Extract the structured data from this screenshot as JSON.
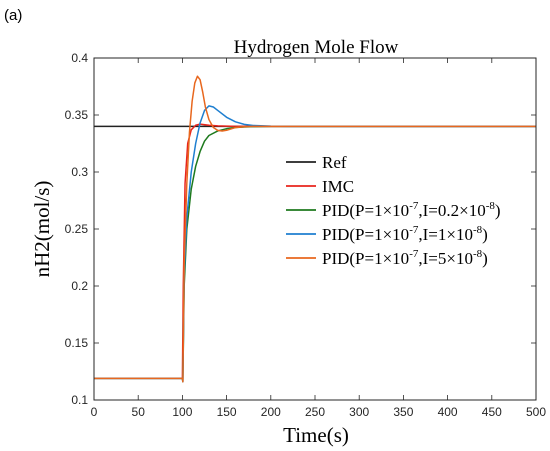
{
  "panel_label": "(a)",
  "chart_data": {
    "type": "line",
    "title": "Hydrogen Mole Flow",
    "xlabel": "Time(s)",
    "ylabel": "nH2(mol/s)",
    "xlim": [
      0,
      500
    ],
    "ylim": [
      0.1,
      0.4
    ],
    "xticks": [
      0,
      50,
      100,
      150,
      200,
      250,
      300,
      350,
      400,
      450,
      500
    ],
    "yticks": [
      0.1,
      0.15,
      0.2,
      0.25,
      0.3,
      0.35,
      0.4
    ],
    "grid": false,
    "legend_position": "center-right",
    "series": [
      {
        "name": "Ref",
        "label_parts": [
          {
            "t": "Ref"
          }
        ],
        "color": "#222222",
        "x": [
          0,
          100,
          100,
          500
        ],
        "y": [
          0.34,
          0.34,
          0.34,
          0.34
        ]
      },
      {
        "name": "IMC",
        "label_parts": [
          {
            "t": "IMC"
          }
        ],
        "color": "#e8251d",
        "x": [
          0,
          100,
          101,
          103,
          106,
          110,
          115,
          120,
          130,
          140,
          150,
          160,
          180,
          200,
          500
        ],
        "y": [
          0.119,
          0.119,
          0.2,
          0.29,
          0.325,
          0.337,
          0.341,
          0.342,
          0.341,
          0.3405,
          0.3402,
          0.34,
          0.34,
          0.34,
          0.34
        ]
      },
      {
        "name": "PID(P=1×10^-7,I=0.2×10^-8)",
        "label_parts": [
          {
            "t": "PID(P=1×10"
          },
          {
            "sup": "-7"
          },
          {
            "t": ",I=0.2×10"
          },
          {
            "sup": "-8"
          },
          {
            "t": ")"
          }
        ],
        "color": "#1e7a1e",
        "x": [
          0,
          100,
          100.5,
          102,
          105,
          110,
          115,
          120,
          125,
          130,
          140,
          150,
          160,
          170,
          180,
          200,
          220,
          250,
          500
        ],
        "y": [
          0.119,
          0.119,
          0.116,
          0.2,
          0.25,
          0.285,
          0.305,
          0.318,
          0.327,
          0.332,
          0.336,
          0.338,
          0.339,
          0.3395,
          0.3398,
          0.34,
          0.34,
          0.34,
          0.34
        ]
      },
      {
        "name": "PID(P=1×10^-7,I=1×10^-8)",
        "label_parts": [
          {
            "t": "PID(P=1×10"
          },
          {
            "sup": "-7"
          },
          {
            "t": ",I=1×10"
          },
          {
            "sup": "-8"
          },
          {
            "t": ")"
          }
        ],
        "color": "#1f7fd0",
        "x": [
          0,
          100,
          100.5,
          102,
          105,
          110,
          115,
          120,
          125,
          130,
          135,
          140,
          150,
          160,
          170,
          180,
          200,
          220,
          250,
          500
        ],
        "y": [
          0.119,
          0.119,
          0.116,
          0.21,
          0.26,
          0.3,
          0.325,
          0.343,
          0.354,
          0.358,
          0.357,
          0.354,
          0.348,
          0.344,
          0.3418,
          0.3408,
          0.3402,
          0.34,
          0.34,
          0.34
        ]
      },
      {
        "name": "PID(P=1×10^-7,I=5×10^-8)",
        "label_parts": [
          {
            "t": "PID(P=1×10"
          },
          {
            "sup": "-7"
          },
          {
            "t": ",I=5×10"
          },
          {
            "sup": "-8"
          },
          {
            "t": ")"
          }
        ],
        "color": "#e8671e",
        "x": [
          0,
          100,
          100.5,
          102,
          105,
          108,
          111,
          114,
          117,
          120,
          123,
          126,
          130,
          135,
          140,
          145,
          150,
          155,
          160,
          170,
          180,
          200,
          500
        ],
        "y": [
          0.119,
          0.119,
          0.116,
          0.22,
          0.29,
          0.335,
          0.362,
          0.378,
          0.384,
          0.381,
          0.37,
          0.357,
          0.346,
          0.339,
          0.3365,
          0.336,
          0.3366,
          0.3378,
          0.339,
          0.3397,
          0.34,
          0.34,
          0.34
        ]
      }
    ]
  }
}
